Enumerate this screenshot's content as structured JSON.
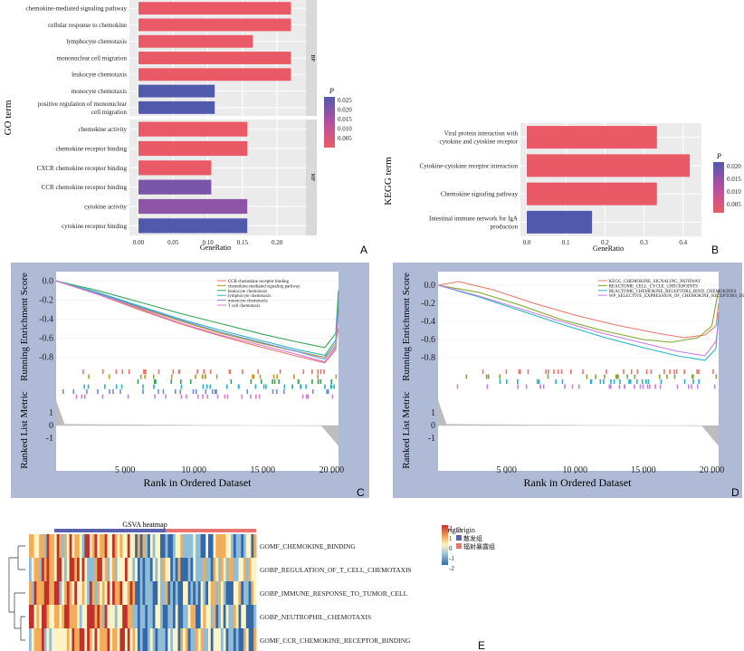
{
  "panels": {
    "a": "A",
    "b": "B",
    "c": "C",
    "d": "D",
    "e": "E"
  },
  "colors": {
    "low_p": "#ea5a66",
    "high_p": "#5159ad",
    "mid_p": "#b64fa2",
    "panel_frame": "#aebad6"
  },
  "chart_data": [
    {
      "type": "bar",
      "ylabel": "GO term",
      "xlabel": "GeneRatio",
      "legend_title": "P",
      "legend_ticks": [
        "0.025",
        "0.020",
        "0.015",
        "0.010",
        "0.005"
      ],
      "x_ticks": [
        "0.00",
        "0.05",
        "0.10",
        "0.15",
        "0.20"
      ],
      "xlim": [
        0,
        0.24
      ],
      "facets": [
        {
          "label": "BP",
          "categories": [
            {
              "label": "chemokine-mediated signaling pathway",
              "value": 0.22,
              "color": "#ea5a66"
            },
            {
              "label": "cellular response to chemokine",
              "value": 0.22,
              "color": "#ea5a66"
            },
            {
              "label": "lymphocyte chemotaxis",
              "value": 0.165,
              "color": "#ea5a66"
            },
            {
              "label": "mononuclear cell migration",
              "value": 0.22,
              "color": "#ea5a66"
            },
            {
              "label": "leukocyte chemotaxis",
              "value": 0.22,
              "color": "#ea5a66"
            },
            {
              "label": "monocyte chemotaxis",
              "value": 0.11,
              "color": "#5159ad"
            },
            {
              "label": "positive regulation of mononuclear cell migration",
              "value": 0.11,
              "color": "#5159ad"
            }
          ]
        },
        {
          "label": "MF",
          "categories": [
            {
              "label": "chemokine activity",
              "value": 0.157,
              "color": "#ea5a66"
            },
            {
              "label": "chemokine receptor binding",
              "value": 0.157,
              "color": "#ea5a66"
            },
            {
              "label": "CXCR chemokine receptor binding",
              "value": 0.105,
              "color": "#ea5a66"
            },
            {
              "label": "CCR chemokine receptor binding",
              "value": 0.105,
              "color": "#7a56a8"
            },
            {
              "label": "cytokine activity",
              "value": 0.157,
              "color": "#8e55a6"
            },
            {
              "label": "cytokine receptor binding",
              "value": 0.157,
              "color": "#5159ad"
            }
          ]
        }
      ]
    },
    {
      "type": "bar",
      "ylabel": "KEGG term",
      "xlabel": "GeneRatio",
      "legend_title": "P",
      "legend_ticks": [
        "0.020",
        "0.015",
        "0.010",
        "0.005"
      ],
      "x_ticks": [
        "0.0",
        "0.1",
        "0.2",
        "0.3",
        "0.4"
      ],
      "xlim": [
        0,
        0.44
      ],
      "categories": [
        {
          "label": "Viral protein interaction with cytokine and cytokine receptor",
          "value": 0.333,
          "color": "#ea5a66"
        },
        {
          "label": "Cytokine-cytokine receptor interaction",
          "value": 0.417,
          "color": "#ea5a66"
        },
        {
          "label": "Chemokine signaling pathway",
          "value": 0.333,
          "color": "#ea5a66"
        },
        {
          "label": "Intestinal immune network for IgA production",
          "value": 0.167,
          "color": "#5159ad"
        }
      ]
    },
    {
      "type": "line",
      "es_label": "Running Enrichment Score",
      "metric_label": "Ranked List Metric",
      "xlabel": "Rank in Ordered Dataset",
      "x_ticks": [
        5000,
        10000,
        15000,
        20000
      ],
      "x_tick_labels": [
        "5 000",
        "10 000",
        "15 000",
        "20 000"
      ],
      "xlim": [
        0,
        20500
      ],
      "es_ticks": [
        "0.0",
        "-0.2",
        "-0.4",
        "-0.6",
        "-0.8"
      ],
      "es_range": [
        -0.9,
        0.05
      ],
      "metric_ticks": [
        "1",
        "0",
        "-1"
      ],
      "series": [
        {
          "name": "CCR chemokine receptor binding",
          "color": "#e8756c",
          "points": [
            [
              0,
              0.0
            ],
            [
              3000,
              -0.14
            ],
            [
              6000,
              -0.3
            ],
            [
              9000,
              -0.45
            ],
            [
              12000,
              -0.58
            ],
            [
              15000,
              -0.7
            ],
            [
              17500,
              -0.79
            ],
            [
              19500,
              -0.86
            ],
            [
              20300,
              -0.72
            ],
            [
              20500,
              -0.3
            ]
          ]
        },
        {
          "name": "chemokine-mediated signaling pathway",
          "color": "#b99a26",
          "points": [
            [
              0,
              0.0
            ],
            [
              3000,
              -0.13
            ],
            [
              6000,
              -0.28
            ],
            [
              9000,
              -0.42
            ],
            [
              12000,
              -0.55
            ],
            [
              15000,
              -0.66
            ],
            [
              17500,
              -0.74
            ],
            [
              19500,
              -0.8
            ],
            [
              20300,
              -0.65
            ],
            [
              20500,
              -0.5
            ]
          ]
        },
        {
          "name": "leukocyte chemotaxis",
          "color": "#33a454",
          "points": [
            [
              0,
              0.0
            ],
            [
              3000,
              -0.1
            ],
            [
              6000,
              -0.22
            ],
            [
              9000,
              -0.34
            ],
            [
              12000,
              -0.45
            ],
            [
              15000,
              -0.56
            ],
            [
              17500,
              -0.64
            ],
            [
              19500,
              -0.7
            ],
            [
              20300,
              -0.55
            ],
            [
              20500,
              -0.1
            ]
          ]
        },
        {
          "name": "lymphocyte chemotaxis",
          "color": "#27b3c4",
          "points": [
            [
              0,
              0.0
            ],
            [
              3000,
              -0.12
            ],
            [
              6000,
              -0.26
            ],
            [
              9000,
              -0.4
            ],
            [
              12000,
              -0.52
            ],
            [
              15000,
              -0.63
            ],
            [
              17500,
              -0.72
            ],
            [
              19500,
              -0.78
            ],
            [
              20300,
              -0.62
            ],
            [
              20500,
              -0.2
            ]
          ]
        },
        {
          "name": "monocyte chemotaxis",
          "color": "#6a8ed4",
          "points": [
            [
              0,
              0.0
            ],
            [
              3000,
              -0.13
            ],
            [
              6000,
              -0.27
            ],
            [
              9000,
              -0.41
            ],
            [
              12000,
              -0.54
            ],
            [
              15000,
              -0.65
            ],
            [
              17500,
              -0.74
            ],
            [
              19500,
              -0.82
            ],
            [
              20300,
              -0.68
            ],
            [
              20500,
              -0.25
            ]
          ]
        },
        {
          "name": "T cell chemotaxis",
          "color": "#d67ed0",
          "points": [
            [
              0,
              0.0
            ],
            [
              3000,
              -0.14
            ],
            [
              6000,
              -0.29
            ],
            [
              9000,
              -0.44
            ],
            [
              12000,
              -0.57
            ],
            [
              15000,
              -0.68
            ],
            [
              17500,
              -0.77
            ],
            [
              19500,
              -0.85
            ],
            [
              20300,
              -0.7
            ],
            [
              20500,
              -0.35
            ]
          ]
        }
      ]
    },
    {
      "type": "line",
      "es_label": "Running Enrichment Score",
      "metric_label": "Ranked List Metric",
      "xlabel": "Rank in Ordered Dataset",
      "x_ticks": [
        5000,
        10000,
        15000,
        20000
      ],
      "x_tick_labels": [
        "5 000",
        "10 000",
        "15 000",
        "20 000"
      ],
      "xlim": [
        0,
        20500
      ],
      "es_ticks": [
        "0.0",
        "-0.2",
        "-0.4",
        "-0.6",
        "-0.8"
      ],
      "es_range": [
        -0.9,
        0.1
      ],
      "metric_ticks": [
        "1",
        "0",
        "-1"
      ],
      "series": [
        {
          "name": "KEGG_CHEMOKINE_SIGNALING_PATHWAY",
          "color": "#e8756c",
          "points": [
            [
              0,
              0.0
            ],
            [
              1500,
              0.04
            ],
            [
              4000,
              -0.05
            ],
            [
              7000,
              -0.2
            ],
            [
              10000,
              -0.33
            ],
            [
              13000,
              -0.44
            ],
            [
              16000,
              -0.53
            ],
            [
              18000,
              -0.58
            ],
            [
              19500,
              -0.55
            ],
            [
              20300,
              -0.45
            ],
            [
              20500,
              -0.2
            ]
          ]
        },
        {
          "name": "REACTOME_CELL_CYCLE_CHECKPOINTS",
          "color": "#7ea72a",
          "points": [
            [
              0,
              0.0
            ],
            [
              3000,
              -0.08
            ],
            [
              6000,
              -0.22
            ],
            [
              9000,
              -0.38
            ],
            [
              12000,
              -0.5
            ],
            [
              15000,
              -0.6
            ],
            [
              17000,
              -0.63
            ],
            [
              19000,
              -0.58
            ],
            [
              20000,
              -0.45
            ],
            [
              20500,
              -0.05
            ]
          ]
        },
        {
          "name": "REACTOME_CHEMOKINE_RECEPTORS_BIND_CHEMOKINES",
          "color": "#27b3c4",
          "points": [
            [
              0,
              0.0
            ],
            [
              3000,
              -0.13
            ],
            [
              6000,
              -0.28
            ],
            [
              9000,
              -0.43
            ],
            [
              12000,
              -0.57
            ],
            [
              15000,
              -0.69
            ],
            [
              17500,
              -0.78
            ],
            [
              19500,
              -0.83
            ],
            [
              20300,
              -0.7
            ],
            [
              20500,
              -0.3
            ]
          ]
        },
        {
          "name": "WP_SELECTIVE_EXPRESSION_OF_CHEMOKINE_RECEPTORS_DURING_TCELL_POLARIZATION",
          "color": "#c77ce0",
          "points": [
            [
              0,
              0.0
            ],
            [
              3000,
              -0.12
            ],
            [
              6000,
              -0.26
            ],
            [
              9000,
              -0.4
            ],
            [
              12000,
              -0.53
            ],
            [
              15000,
              -0.64
            ],
            [
              17500,
              -0.73
            ],
            [
              19500,
              -0.78
            ],
            [
              20300,
              -0.62
            ],
            [
              20500,
              -0.4
            ]
          ]
        }
      ]
    },
    {
      "type": "heatmap",
      "title": "GSVA heatmap",
      "annotation_label": "Origin",
      "legend_title": "Origin",
      "groups": [
        {
          "name": "散发组",
          "color": "#5a62ad"
        },
        {
          "name": "辐射暴露组",
          "color": "#e8756c"
        }
      ],
      "color_scale_ticks": [
        "2",
        "1",
        "0",
        "-1",
        "-2"
      ],
      "rows": [
        "GOMF_CHEMOKINE_BINDING",
        "GOBP_REGULATION_OF_T_CELL_CHEMOTAXIS",
        "GOBP_IMMUNE_RESPONSE_TO_TUMOR_CELL",
        "GOBP_NEUTROPHIL_CHEMOTAXIS",
        "GOMF_CCR_CHEMOKINE_RECEPTOR_BINDING"
      ]
    }
  ]
}
